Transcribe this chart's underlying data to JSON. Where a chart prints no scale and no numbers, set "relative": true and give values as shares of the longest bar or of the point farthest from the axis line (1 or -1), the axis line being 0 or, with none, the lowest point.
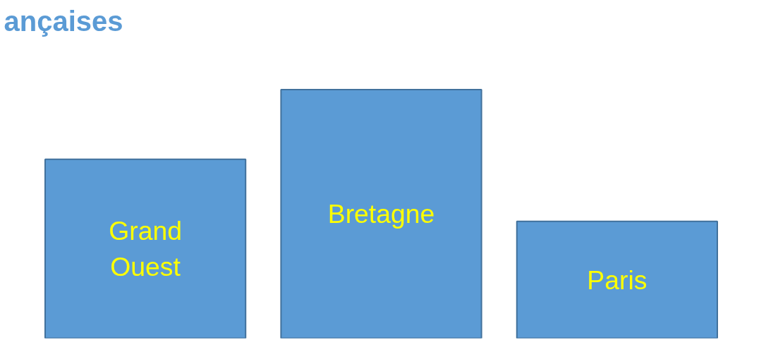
{
  "chart_data": {
    "type": "bar",
    "title": "ançaises",
    "relative": true,
    "categories": [
      "Grand\nOuest",
      "Bretagne",
      "Paris"
    ],
    "values": [
      0.72,
      1,
      0.47
    ],
    "color": "#5b9bd5"
  }
}
